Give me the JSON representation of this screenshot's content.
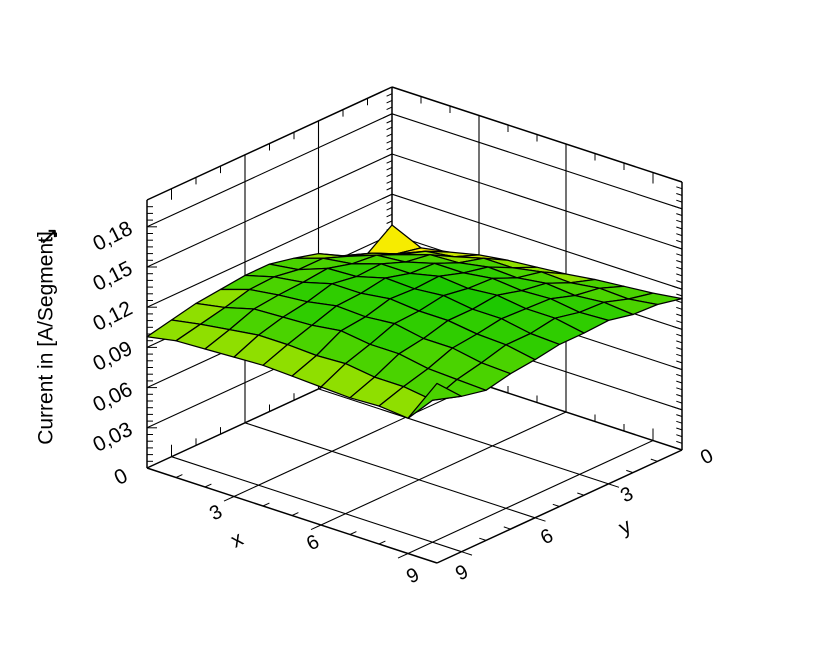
{
  "icons": {
    "z_axis_arrow": "↗"
  },
  "axes": {
    "x": {
      "title": "x",
      "tick_labels": [
        "3",
        "6",
        "9"
      ],
      "tick_values": [
        3,
        6,
        9
      ]
    },
    "y": {
      "title": "y",
      "tick_labels": [
        "9",
        "6",
        "3",
        "0"
      ],
      "tick_values": [
        9,
        6,
        3,
        0
      ]
    },
    "z": {
      "title": "Current in [A/Segment]",
      "origin_label": "0",
      "tick_labels": [
        "0,03",
        "0,06",
        "0,09",
        "0,12",
        "0,15",
        "0,18"
      ],
      "tick_values": [
        0.03,
        0.06,
        0.09,
        0.12,
        0.15,
        0.18
      ],
      "has_arrow": true
    }
  },
  "chart_data": {
    "type": "surface3d",
    "title": "",
    "xlabel": "x",
    "ylabel": "y",
    "zlabel": "Current in [A/Segment]",
    "xlim": [
      0,
      10
    ],
    "ylim": [
      0,
      10
    ],
    "zlim": [
      0,
      0.2
    ],
    "z_major_step": 0.03,
    "z_minor_step": 0.005,
    "xy_minor_step": 1,
    "decimal_separator": ",",
    "grid": true,
    "mesh_color": "#000000",
    "background": "#ffffff",
    "x": [
      0,
      1,
      2,
      3,
      4,
      5,
      6,
      7,
      8,
      9,
      10
    ],
    "y": [
      0,
      1,
      2,
      3,
      4,
      5,
      6,
      7,
      8,
      9,
      10
    ],
    "z_grid": [
      [
        0.097,
        0.084,
        0.091,
        0.101,
        0.106,
        0.11,
        0.11,
        0.108,
        0.106,
        0.102,
        0.098
      ],
      [
        0.087,
        0.091,
        0.1,
        0.106,
        0.113,
        0.113,
        0.116,
        0.115,
        0.11,
        0.106,
        0.102
      ],
      [
        0.091,
        0.1,
        0.106,
        0.114,
        0.116,
        0.121,
        0.119,
        0.118,
        0.116,
        0.109,
        0.103
      ],
      [
        0.096,
        0.103,
        0.113,
        0.116,
        0.123,
        0.122,
        0.125,
        0.12,
        0.117,
        0.112,
        0.104
      ],
      [
        0.099,
        0.109,
        0.114,
        0.122,
        0.123,
        0.128,
        0.125,
        0.124,
        0.118,
        0.112,
        0.105
      ],
      [
        0.101,
        0.109,
        0.118,
        0.122,
        0.128,
        0.127,
        0.128,
        0.123,
        0.121,
        0.111,
        0.104
      ],
      [
        0.103,
        0.113,
        0.117,
        0.125,
        0.126,
        0.129,
        0.126,
        0.125,
        0.118,
        0.112,
        0.103
      ],
      [
        0.106,
        0.112,
        0.12,
        0.123,
        0.128,
        0.126,
        0.126,
        0.121,
        0.118,
        0.109,
        0.102
      ],
      [
        0.108,
        0.115,
        0.118,
        0.124,
        0.125,
        0.126,
        0.123,
        0.121,
        0.114,
        0.109,
        0.103
      ],
      [
        0.11,
        0.114,
        0.12,
        0.121,
        0.125,
        0.122,
        0.122,
        0.117,
        0.113,
        0.106,
        0.101
      ],
      [
        0.113,
        0.117,
        0.118,
        0.122,
        0.121,
        0.121,
        0.118,
        0.116,
        0.112,
        0.116,
        0.134
      ]
    ],
    "color_bands": [
      {
        "max": 0.093,
        "color": "#F6EC00"
      },
      {
        "max": 0.102,
        "color": "#C9E800"
      },
      {
        "max": 0.11,
        "color": "#8FDF00"
      },
      {
        "max": 0.1185,
        "color": "#4AD300"
      },
      {
        "max": 0.126,
        "color": "#2FCD00"
      },
      {
        "max": 1.0,
        "color": "#1DC800"
      }
    ]
  }
}
